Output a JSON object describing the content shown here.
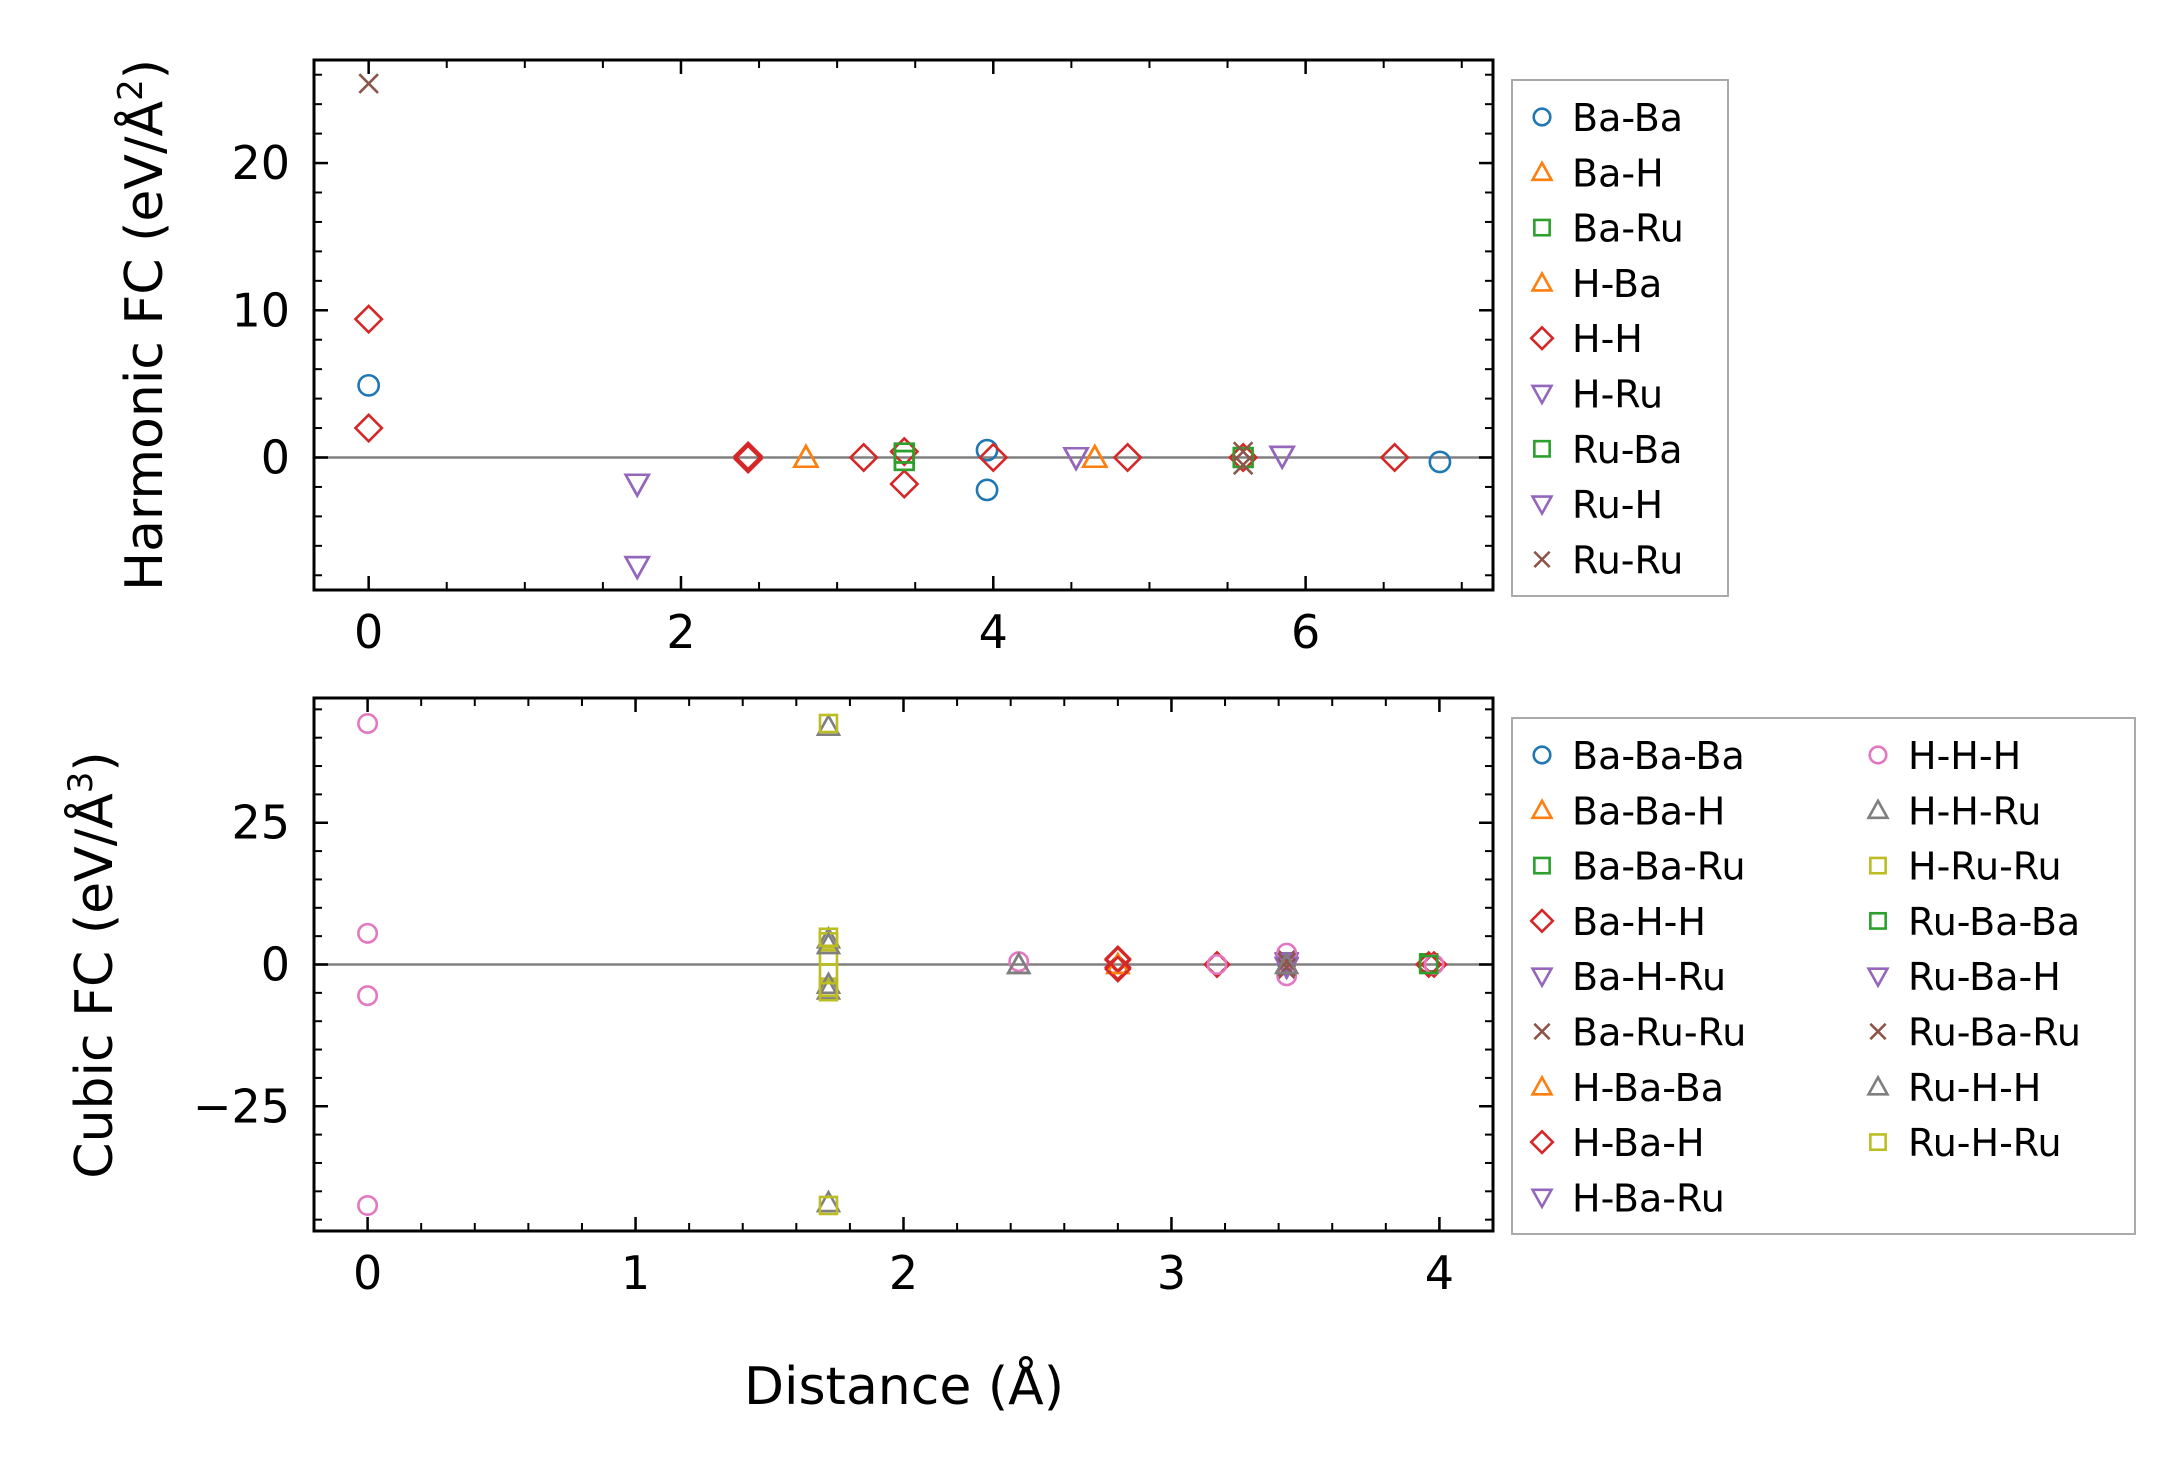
{
  "charts": [
    {
      "type": "scatter",
      "ylabel": "Harmonic FC (eV/Å",
      "ylabel_sup": "2",
      "ylabel_tail": ")",
      "xlabel": "",
      "xlim": [
        -0.35,
        7.2
      ],
      "ylim": [
        -9,
        27
      ],
      "xticks": [
        0,
        2,
        4,
        6
      ],
      "yticks": [
        0,
        10,
        20
      ],
      "xtick_labels": [
        "0",
        "2",
        "4",
        "6"
      ],
      "ytick_labels": [
        "0",
        "10",
        "20"
      ],
      "grid": false,
      "legend_columns": 1,
      "series": [
        {
          "name": "Ba-Ba",
          "marker": "o",
          "color": "#1f77b4",
          "points": [
            [
              0,
              4.9
            ],
            [
              3.96,
              0.5
            ],
            [
              3.96,
              -2.2
            ],
            [
              6.86,
              -0.3
            ]
          ]
        },
        {
          "name": "Ba-H",
          "marker": "^",
          "color": "#ff7f0e",
          "points": [
            [
              2.8,
              0
            ],
            [
              4.65,
              0
            ]
          ]
        },
        {
          "name": "Ba-Ru",
          "marker": "s",
          "color": "#2ca02c",
          "points": [
            [
              3.43,
              0.3
            ],
            [
              3.43,
              -0.2
            ],
            [
              5.6,
              0
            ]
          ]
        },
        {
          "name": "H-Ba",
          "marker": "^",
          "color": "#ff7f0e",
          "points": [
            [
              2.8,
              0
            ],
            [
              4.65,
              0
            ]
          ]
        },
        {
          "name": "H-H",
          "marker": "D",
          "color": "#d62728",
          "points": [
            [
              0,
              9.4
            ],
            [
              0,
              2.0
            ],
            [
              2.43,
              0
            ],
            [
              2.43,
              0.1
            ],
            [
              2.43,
              -0.1
            ],
            [
              3.17,
              0
            ],
            [
              3.43,
              0.4
            ],
            [
              3.43,
              -1.8
            ],
            [
              4.0,
              0
            ],
            [
              4.86,
              0
            ],
            [
              5.6,
              0
            ],
            [
              6.57,
              0
            ]
          ]
        },
        {
          "name": "H-Ru",
          "marker": "v",
          "color": "#9467bd",
          "points": [
            [
              1.72,
              -1.8
            ],
            [
              1.72,
              -7.4
            ],
            [
              4.53,
              0
            ],
            [
              5.85,
              0.1
            ]
          ]
        },
        {
          "name": "Ru-Ba",
          "marker": "s",
          "color": "#2ca02c",
          "points": [
            [
              3.43,
              0.3
            ],
            [
              3.43,
              -0.2
            ],
            [
              5.6,
              0
            ]
          ]
        },
        {
          "name": "Ru-H",
          "marker": "v",
          "color": "#9467bd",
          "points": [
            [
              1.72,
              -1.8
            ],
            [
              1.72,
              -7.4
            ],
            [
              4.53,
              0
            ],
            [
              5.85,
              0.1
            ]
          ]
        },
        {
          "name": "Ru-Ru",
          "marker": "x",
          "color": "#8c564b",
          "points": [
            [
              0,
              25.4
            ],
            [
              5.6,
              0.4
            ],
            [
              5.6,
              -0.5
            ]
          ]
        }
      ]
    },
    {
      "type": "scatter",
      "ylabel": "Cubic FC (eV/Å",
      "ylabel_sup": "3",
      "ylabel_tail": ")",
      "xlabel": "Distance (Å)",
      "xlim": [
        -0.2,
        4.2
      ],
      "ylim": [
        -47,
        47
      ],
      "xticks": [
        0,
        1,
        2,
        3,
        4
      ],
      "yticks": [
        -25,
        0,
        25
      ],
      "xtick_labels": [
        "0",
        "1",
        "2",
        "3",
        "4"
      ],
      "ytick_labels": [
        "−25",
        "0",
        "25"
      ],
      "grid": false,
      "legend_columns": 2,
      "series": [
        {
          "name": "Ba-Ba-Ba",
          "marker": "o",
          "color": "#1f77b4",
          "points": [
            [
              3.96,
              0
            ]
          ]
        },
        {
          "name": "Ba-Ba-H",
          "marker": "^",
          "color": "#ff7f0e",
          "points": [
            [
              2.8,
              0
            ]
          ]
        },
        {
          "name": "Ba-Ba-Ru",
          "marker": "s",
          "color": "#2ca02c",
          "points": [
            [
              3.96,
              0.3
            ]
          ]
        },
        {
          "name": "Ba-H-H",
          "marker": "D",
          "color": "#d62728",
          "points": [
            [
              2.8,
              0.8
            ],
            [
              2.8,
              -0.5
            ],
            [
              3.17,
              0
            ],
            [
              3.96,
              0
            ]
          ]
        },
        {
          "name": "Ba-H-Ru",
          "marker": "v",
          "color": "#9467bd",
          "points": [
            [
              3.43,
              0.5
            ],
            [
              3.43,
              -0.5
            ]
          ]
        },
        {
          "name": "Ba-Ru-Ru",
          "marker": "x",
          "color": "#8c564b",
          "points": [
            [
              3.43,
              1.0
            ],
            [
              3.43,
              -1.0
            ]
          ]
        },
        {
          "name": "H-Ba-Ba",
          "marker": "^",
          "color": "#ff7f0e",
          "points": [
            [
              2.8,
              0
            ]
          ]
        },
        {
          "name": "H-Ba-H",
          "marker": "D",
          "color": "#d62728",
          "points": [
            [
              2.8,
              1.0
            ],
            [
              2.8,
              -0.8
            ],
            [
              3.17,
              0
            ],
            [
              3.98,
              0
            ]
          ]
        },
        {
          "name": "H-Ba-Ru",
          "marker": "v",
          "color": "#9467bd",
          "points": [
            [
              3.43,
              0.3
            ]
          ]
        },
        {
          "name": "H-H-H",
          "marker": "o",
          "color": "#e377c2",
          "points": [
            [
              0,
              42.5
            ],
            [
              0,
              5.5
            ],
            [
              0,
              -5.5
            ],
            [
              0,
              -42.5
            ],
            [
              2.43,
              0.5
            ],
            [
              3.17,
              0
            ],
            [
              3.43,
              2.0
            ],
            [
              3.43,
              -2.0
            ],
            [
              3.98,
              0
            ]
          ]
        },
        {
          "name": "H-H-Ru",
          "marker": "^",
          "color": "#7f7f7f",
          "points": [
            [
              1.72,
              42.0
            ],
            [
              1.72,
              4.5
            ],
            [
              1.72,
              -4.5
            ],
            [
              1.72,
              -42.0
            ],
            [
              2.43,
              0
            ]
          ]
        },
        {
          "name": "H-Ru-Ru",
          "marker": "s",
          "color": "#bcbd22",
          "points": [
            [
              1.72,
              42.5
            ],
            [
              1.72,
              4.0
            ],
            [
              1.72,
              1.5
            ],
            [
              1.72,
              -1.5
            ],
            [
              1.72,
              -4.0
            ],
            [
              1.72,
              -42.5
            ]
          ]
        },
        {
          "name": "Ru-Ba-Ba",
          "marker": "s",
          "color": "#2ca02c",
          "points": [
            [
              3.96,
              0
            ]
          ]
        },
        {
          "name": "Ru-Ba-H",
          "marker": "v",
          "color": "#9467bd",
          "points": [
            [
              3.43,
              -0.3
            ]
          ]
        },
        {
          "name": "Ru-Ba-Ru",
          "marker": "x",
          "color": "#8c564b",
          "points": [
            [
              3.43,
              0.5
            ],
            [
              3.43,
              -0.5
            ]
          ]
        },
        {
          "name": "Ru-H-H",
          "marker": "^",
          "color": "#7f7f7f",
          "points": [
            [
              1.72,
              3.5
            ],
            [
              1.72,
              -3.5
            ],
            [
              2.43,
              0
            ],
            [
              3.43,
              0
            ]
          ]
        },
        {
          "name": "Ru-H-Ru",
          "marker": "s",
          "color": "#bcbd22",
          "points": [
            [
              1.72,
              4.8
            ],
            [
              1.72,
              -4.8
            ]
          ]
        }
      ]
    }
  ]
}
